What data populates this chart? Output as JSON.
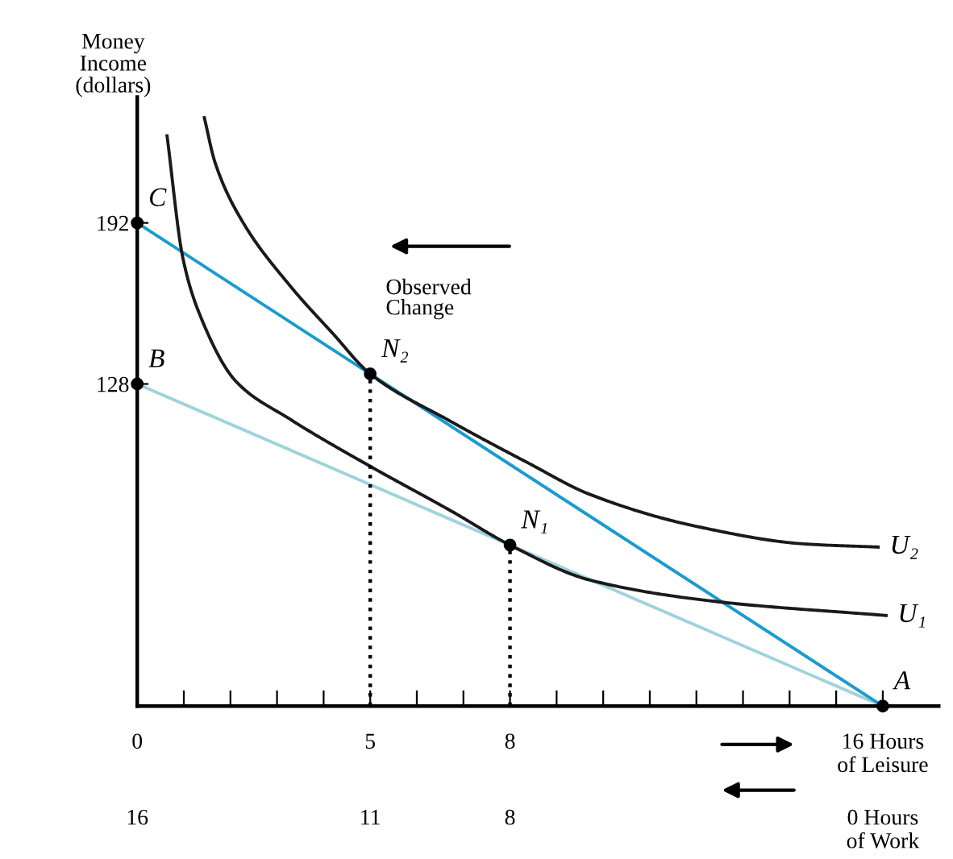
{
  "chart_data": {
    "type": "line",
    "ylabel": "Money\nIncome\n(dollars)",
    "xlim": [
      0,
      17.2
    ],
    "ylim": [
      0,
      242
    ],
    "xticks": [
      0,
      {
        "value": 1,
        "label": null
      },
      {
        "value": 2,
        "label": null
      },
      {
        "value": 3,
        "label": null
      },
      {
        "value": 4,
        "label": null
      },
      5,
      {
        "value": 6,
        "label": null
      },
      {
        "value": 7,
        "label": null
      },
      8,
      {
        "value": 9,
        "label": null
      },
      {
        "value": 10,
        "label": null
      },
      {
        "value": 11,
        "label": null
      },
      {
        "value": 12,
        "label": null
      },
      {
        "value": 13,
        "label": null
      },
      {
        "value": 14,
        "label": null
      },
      {
        "value": 15,
        "label": null
      },
      {
        "value": 16,
        "label": "16 Hours\nof Leisure"
      }
    ],
    "x2lim": [
      16,
      -1.2
    ],
    "x2ticks": [
      16,
      11,
      8,
      {
        "value": 0,
        "label": "0 Hours\nof Work"
      }
    ],
    "yticks": [
      128,
      192
    ],
    "grid": false,
    "series": [
      {
        "color": "#9fd3dc",
        "x": [
          0,
          16
        ],
        "values": [
          128,
          0
        ]
      },
      {
        "color": "#1a9bd0",
        "x": [
          0,
          16
        ],
        "values": [
          192,
          0
        ]
      },
      {
        "name": "U₁",
        "color": "#1a1a1a",
        "x": [
          0.64,
          0.98,
          1.32,
          2.13,
          3.28,
          4.95,
          6.74,
          8,
          9.73,
          12.5,
          16.07
        ],
        "values": [
          226.6,
          178,
          156.6,
          128.8,
          114,
          95.8,
          77.5,
          64,
          50,
          41.4,
          36
        ]
      },
      {
        "name": "U₂",
        "color": "#1a1a1a",
        "x": [
          1.44,
          1.67,
          2.25,
          3.28,
          4.2,
          5,
          6.74,
          7.43,
          8.35,
          9.73,
          12.03,
          14.34,
          15.9
        ],
        "values": [
          233.8,
          216,
          192.8,
          167,
          148,
          132,
          113,
          106,
          97,
          84,
          71.3,
          64.4,
          63.2
        ]
      },
      {
        "color": "#000000",
        "line_style": "dotted",
        "x": [
          5,
          5
        ],
        "values": [
          0,
          132
        ]
      },
      {
        "color": "#000000",
        "line_style": "dotted",
        "x": [
          8,
          8
        ],
        "values": [
          0,
          64
        ]
      },
      {
        "type": "scatter",
        "color": "#000000",
        "marker": "circle",
        "x": [
          0,
          0,
          5,
          8,
          16
        ],
        "values": [
          192,
          128,
          132,
          64,
          0
        ]
      }
    ],
    "annotations": [
      {
        "text": "C",
        "x": 0,
        "y": 192
      },
      {
        "text": "B",
        "x": 0,
        "y": 128
      },
      {
        "text": "N₂",
        "x": 5,
        "y": 132
      },
      {
        "text": "N₁",
        "x": 8,
        "y": 64
      },
      {
        "text": "A",
        "x": 16,
        "y": 0
      },
      "Observed\nChange"
    ]
  }
}
